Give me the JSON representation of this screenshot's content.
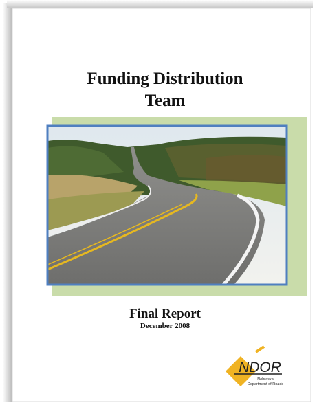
{
  "title_lines": [
    "Funding Distribution",
    "Team"
  ],
  "subtitle": "Final Report",
  "date": "December 2008",
  "logo": {
    "name": "NDOR",
    "line1": "Nebraska",
    "line2": "Department of Roads"
  }
}
